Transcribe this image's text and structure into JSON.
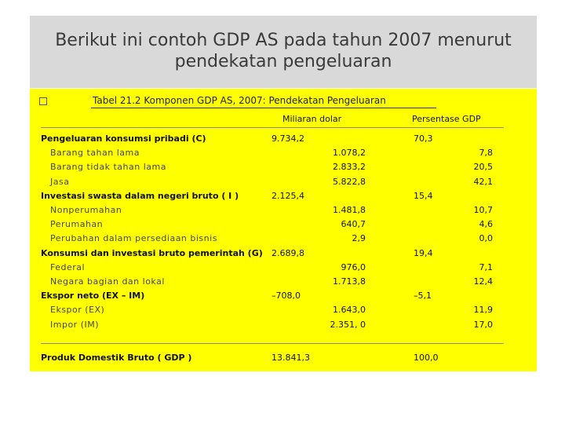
{
  "slide": {
    "title_line1": "Berikut ini contoh GDP AS pada tahun 2007 menurut",
    "title_line2": "pendekatan pengeluaran"
  },
  "table": {
    "caption": "Tabel 21.2   Komponen GDP AS, 2007: Pendekatan Pengeluaran",
    "col_headers": [
      "Miliaran dolar",
      "Persentase GDP"
    ],
    "rows": [
      {
        "label": "Pengeluaran konsumsi pribadi (C)",
        "value": "9.734,2",
        "percent": "70,3",
        "level": "main"
      },
      {
        "label": "Barang tahan lama",
        "value": "1.078,2",
        "percent": "7,8",
        "level": "sub"
      },
      {
        "label": "Barang tidak tahan lama",
        "value": "2.833,2",
        "percent": "20,5",
        "level": "sub"
      },
      {
        "label": "Jasa",
        "value": "5.822,8",
        "percent": "42,1",
        "level": "sub"
      },
      {
        "label": "Investasi swasta dalam negeri bruto ( I )",
        "value": "2.125,4",
        "percent": "15,4",
        "level": "main"
      },
      {
        "label": "Nonperumahan",
        "value": "1.481,8",
        "percent": "10,7",
        "level": "sub"
      },
      {
        "label": "Perumahan",
        "value": "640,7",
        "percent": "4,6",
        "level": "sub"
      },
      {
        "label": "Perubahan dalam persediaan bisnis",
        "value": "2,9",
        "percent": "0,0",
        "level": "sub"
      },
      {
        "label": "Konsumsi dan investasi bruto pemerintah (G)",
        "value": "2.689,8",
        "percent": "19,4",
        "level": "main"
      },
      {
        "label": "Federal",
        "value": "976,0",
        "percent": "7,1",
        "level": "sub"
      },
      {
        "label": "Negara bagian dan lokal",
        "value": "1.713,8",
        "percent": "12,4",
        "level": "sub"
      },
      {
        "label": "Ekspor neto (EX – IM)",
        "value": "–708,0",
        "percent": "–5,1",
        "level": "main"
      },
      {
        "label": "Ekspor (EX)",
        "value": "1.643,0",
        "percent": "11,9",
        "level": "sub"
      },
      {
        "label": "Impor (IM)",
        "value": "2.351, 0",
        "percent": "17,0",
        "level": "sub"
      }
    ],
    "total": {
      "label": "Produk  Domestik  Bruto  ( GDP )",
      "value": "13.841,3",
      "percent": "100,0"
    }
  },
  "colors": {
    "header_bg": "#d9d9d9",
    "table_bg": "#ffff00"
  }
}
